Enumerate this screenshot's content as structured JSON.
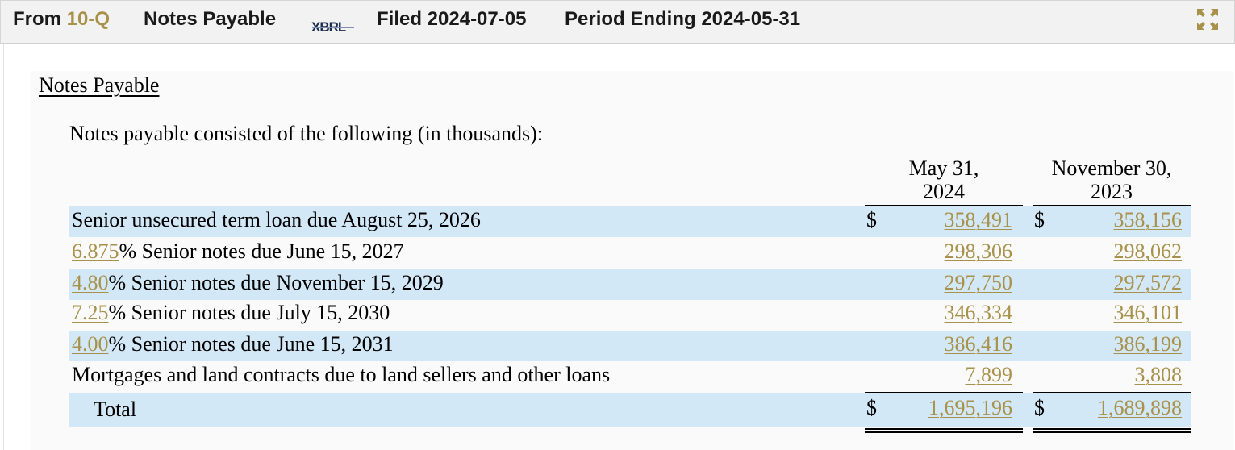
{
  "header": {
    "from_label": "From",
    "form_type": "10-Q",
    "section": "Notes Payable",
    "xbrl_logo": "XBRL",
    "filed": "Filed 2024-07-05",
    "period": "Period Ending 2024-05-31",
    "expand_icon": "expand-icon"
  },
  "document": {
    "title": "Notes Payable",
    "intro": "Notes payable consisted of the following (in thousands):",
    "columns": [
      "May 31,\n2024",
      "November 30,\n2023"
    ],
    "col1_line1": "May 31,",
    "col1_line2": "2024",
    "col2_line1": "November 30,",
    "col2_line2": "2023",
    "currency": "$",
    "rows": [
      {
        "rate": "",
        "label": "Senior unsecured term loan due August 25, 2026",
        "v1": "358,491",
        "v2": "358,156"
      },
      {
        "rate": "6.875",
        "label": "% Senior notes due June 15, 2027",
        "v1": "298,306",
        "v2": "298,062"
      },
      {
        "rate": "4.80",
        "label": "% Senior notes due November 15, 2029",
        "v1": "297,750",
        "v2": "297,572"
      },
      {
        "rate": "7.25",
        "label": "% Senior notes due July 15, 2030",
        "v1": "346,334",
        "v2": "346,101"
      },
      {
        "rate": "4.00",
        "label": "% Senior notes due June 15, 2031",
        "v1": "386,416",
        "v2": "386,199"
      },
      {
        "rate": "",
        "label": "Mortgages and land contracts due to land sellers and other loans",
        "v1": "7,899",
        "v2": "3,808"
      }
    ],
    "total": {
      "label": "Total",
      "v1": "1,695,196",
      "v2": "1,689,898"
    }
  },
  "colors": {
    "link": "#a8914a",
    "row_shade": "#d3e8f7",
    "header_bg": "#f2f2f2"
  }
}
